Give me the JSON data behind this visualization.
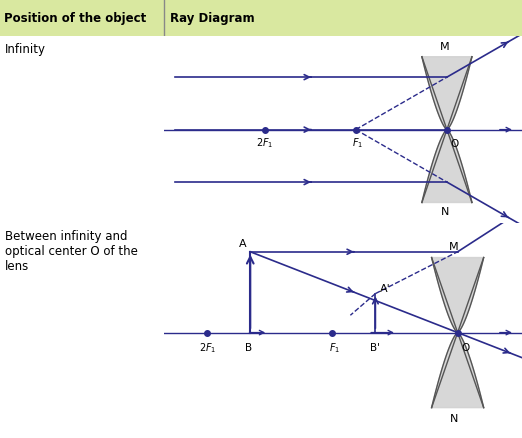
{
  "col1_header": "Position of the object",
  "col2_header": "Ray Diagram",
  "row1_label": "Infinity",
  "row2_label": "Between infinity and\noptical center O of the\nlens",
  "header_bg": "#d9e8a0",
  "lens_color": "#d0d0d0",
  "lens_edge": "#555555",
  "ray_color": "#2b2b8b",
  "dashed_color": "#2b2b8b",
  "dot_color": "#2b2b8b",
  "text_color": "#000000",
  "border_color": "#888888",
  "fig_bg": "#ffffff",
  "font_size": 8.5
}
